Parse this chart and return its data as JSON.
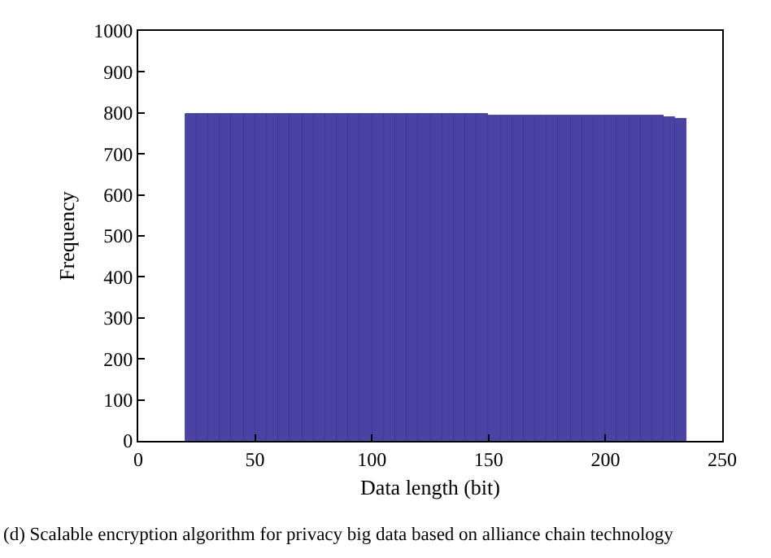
{
  "chart_data": {
    "type": "histogram",
    "xlabel": "Data length (bit)",
    "ylabel": "Frequency",
    "bins": [
      20,
      25,
      30,
      35,
      40,
      45,
      50,
      55,
      60,
      65,
      70,
      75,
      80,
      85,
      90,
      95,
      100,
      105,
      110,
      115,
      120,
      125,
      130,
      135,
      140,
      145,
      150,
      155,
      160,
      165,
      170,
      175,
      180,
      185,
      190,
      195,
      200,
      205,
      210,
      215,
      220,
      225,
      230,
      235
    ],
    "values": [
      798,
      797,
      798,
      797,
      798,
      797,
      798,
      797,
      798,
      797,
      798,
      797,
      798,
      797,
      798,
      797,
      798,
      797,
      797,
      797,
      797,
      798,
      797,
      796,
      796,
      797,
      795,
      795,
      795,
      795,
      795,
      794,
      794,
      794,
      794,
      793,
      793,
      793,
      792,
      792,
      792,
      791,
      784
    ],
    "color": "#4b43a3",
    "xlim": [
      0,
      250
    ],
    "xticks": [
      0,
      50,
      100,
      150,
      200,
      250
    ],
    "ylim": [
      0,
      1000
    ],
    "yticks": [
      0,
      100,
      200,
      300,
      400,
      500,
      600,
      700,
      800,
      900,
      1000
    ],
    "annotations": [
      "(d) Scalable encryption algorithm for privacy big data based on alliance chain technology"
    ]
  }
}
